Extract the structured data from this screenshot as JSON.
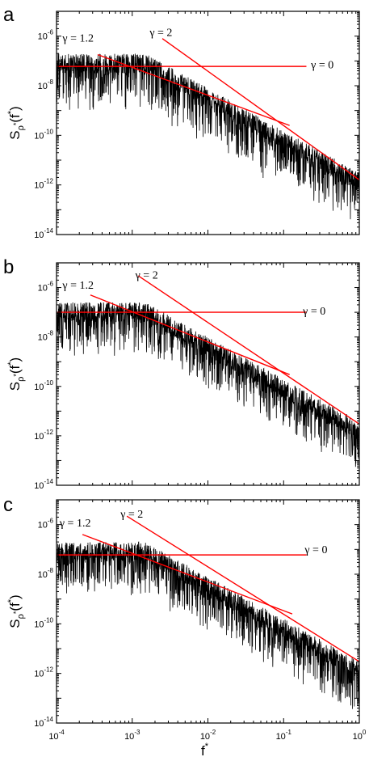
{
  "chart_data": [
    {
      "type": "line",
      "panel_label": "a",
      "xscale": "log",
      "yscale": "log",
      "xlim": [
        0.0001,
        1
      ],
      "ylim": [
        1e-14,
        1e-05
      ],
      "ylabel": "S",
      "ylabel_sub": "ρ",
      "ylabel_sub_sup": "*",
      "ylabel_arg": "(f",
      "ylabel_arg_sup": "*",
      "ylabel_close": ")",
      "x_ticks": [
        0.0001,
        0.001,
        0.01,
        0.1,
        1
      ],
      "y_ticks": [
        1e-14,
        1e-12,
        1e-10,
        1e-08,
        1e-06
      ],
      "spectrum": {
        "plateau_level": 8e-08,
        "knee_f": 0.0015,
        "slope": -1.7,
        "noise_decades": 1.6
      },
      "fits": [
        {
          "label": "γ = 0",
          "gamma": 0,
          "level": 6e-08,
          "x_range": [
            0.0001,
            0.2
          ]
        },
        {
          "label": "γ = 1.2",
          "gamma": 1.2,
          "points": [
            [
              0.00035,
              1.8e-07
            ],
            [
              0.12,
              2.5e-10
            ]
          ]
        },
        {
          "label": "γ = 2",
          "gamma": 2,
          "points": [
            [
              0.0025,
              8e-07
            ],
            [
              1.0,
              1.6e-12
            ]
          ]
        }
      ],
      "annotations": [
        {
          "text": "γ = 1.2",
          "x": 0.00012,
          "y": 6e-07
        },
        {
          "text": "γ = 2",
          "x": 0.0017,
          "y": 1e-06
        },
        {
          "text": "γ = 0",
          "x": 0.23,
          "y": 5e-08
        }
      ]
    },
    {
      "type": "line",
      "panel_label": "b",
      "xscale": "log",
      "yscale": "log",
      "xlim": [
        0.0001,
        1
      ],
      "ylim": [
        1e-14,
        1e-05
      ],
      "ylabel": "S",
      "ylabel_sub": "ρ",
      "ylabel_sub_sup": "*",
      "ylabel_arg": "(f",
      "ylabel_arg_sup": "*",
      "ylabel_close": ")",
      "x_ticks": [
        0.0001,
        0.001,
        0.01,
        0.1,
        1
      ],
      "y_ticks": [
        1e-14,
        1e-12,
        1e-10,
        1e-08,
        1e-06
      ],
      "spectrum": {
        "plateau_level": 1e-07,
        "knee_f": 0.0015,
        "slope": -1.7,
        "noise_decades": 1.5
      },
      "fits": [
        {
          "label": "γ = 0",
          "gamma": 0,
          "level": 1e-07,
          "x_range": [
            0.0001,
            0.2
          ]
        },
        {
          "label": "γ = 1.2",
          "gamma": 1.2,
          "points": [
            [
              0.00028,
              5e-07
            ],
            [
              0.12,
              3e-10
            ]
          ]
        },
        {
          "label": "γ = 2",
          "gamma": 2,
          "points": [
            [
              0.0012,
              3e-06
            ],
            [
              1.0,
              3e-12
            ]
          ]
        }
      ],
      "annotations": [
        {
          "text": "γ = 1.2",
          "x": 0.00012,
          "y": 9e-07
        },
        {
          "text": "γ = 2",
          "x": 0.0011,
          "y": 2.3e-06
        },
        {
          "text": "γ = 0",
          "x": 0.18,
          "y": 8e-08
        }
      ]
    },
    {
      "type": "line",
      "panel_label": "c",
      "xscale": "log",
      "yscale": "log",
      "xlim": [
        0.0001,
        1
      ],
      "ylim": [
        1e-14,
        1e-05
      ],
      "ylabel": "S",
      "ylabel_sub": "ρ",
      "ylabel_sub_sup": "*",
      "ylabel_arg": "(f",
      "ylabel_arg_sup": "*",
      "ylabel_close": ")",
      "xlabel": "f",
      "xlabel_sup": "*",
      "x_ticks": [
        0.0001,
        0.001,
        0.01,
        0.1,
        1
      ],
      "y_ticks": [
        1e-14,
        1e-12,
        1e-10,
        1e-08,
        1e-06
      ],
      "spectrum": {
        "plateau_level": 8e-08,
        "knee_f": 0.0015,
        "slope": -1.7,
        "noise_decades": 1.5
      },
      "fits": [
        {
          "label": "γ = 0",
          "gamma": 0,
          "level": 6e-08,
          "x_range": [
            0.0001,
            0.2
          ]
        },
        {
          "label": "γ = 1.2",
          "gamma": 1.2,
          "points": [
            [
              0.00022,
              4e-07
            ],
            [
              0.13,
              2.5e-10
            ]
          ]
        },
        {
          "label": "γ = 2",
          "gamma": 2,
          "points": [
            [
              0.00085,
              2.2e-06
            ],
            [
              1.0,
              3e-12
            ]
          ]
        }
      ],
      "annotations": [
        {
          "text": "γ = 1.2",
          "x": 0.00011,
          "y": 8.5e-07
        },
        {
          "text": "γ = 2",
          "x": 0.0007,
          "y": 1.9e-06
        },
        {
          "text": "γ = 0",
          "x": 0.19,
          "y": 7e-08
        }
      ]
    }
  ]
}
